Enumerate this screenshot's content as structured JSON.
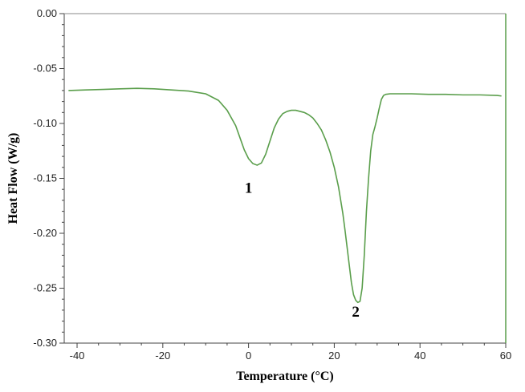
{
  "chart_data": {
    "type": "line",
    "title": "",
    "xlabel": "Temperature (°C)",
    "ylabel": "Heat Flow (W/g)",
    "xlim": [
      -43,
      60
    ],
    "ylim": [
      -0.3,
      0.0
    ],
    "xticks": [
      {
        "value": -40,
        "label": "-40"
      },
      {
        "value": -20,
        "label": "-20"
      },
      {
        "value": 0,
        "label": "0"
      },
      {
        "value": 20,
        "label": "20"
      },
      {
        "value": 40,
        "label": "40"
      },
      {
        "value": 60,
        "label": "60"
      }
    ],
    "yticks": [
      {
        "value": 0.0,
        "label": "0.00"
      },
      {
        "value": -0.05,
        "label": "-0.05"
      },
      {
        "value": -0.1,
        "label": "-0.10"
      },
      {
        "value": -0.15,
        "label": "-0.15"
      },
      {
        "value": -0.2,
        "label": "-0.20"
      },
      {
        "value": -0.25,
        "label": "-0.25"
      },
      {
        "value": -0.3,
        "label": "-0.30"
      }
    ],
    "grid": false,
    "legend": "none",
    "series": [
      {
        "color": "#5a9e4b",
        "x": [
          -42,
          -38,
          -34,
          -30,
          -26,
          -22,
          -18,
          -14,
          -10,
          -7,
          -5,
          -3,
          -2,
          -1,
          0,
          1,
          2,
          3,
          4,
          5,
          6,
          7,
          8,
          9,
          10,
          11,
          12,
          13,
          14,
          15,
          16,
          17,
          18,
          19,
          20,
          21,
          22,
          22.5,
          23,
          23.5,
          24,
          24.5,
          25,
          25.5,
          26,
          26.5,
          27,
          27.5,
          28,
          28.5,
          29,
          29.5,
          30,
          30.5,
          31,
          31.5,
          32,
          33,
          35,
          38,
          42,
          46,
          50,
          54,
          58,
          59
        ],
        "y": [
          -0.07,
          -0.0695,
          -0.069,
          -0.0685,
          -0.068,
          -0.0685,
          -0.0695,
          -0.0705,
          -0.073,
          -0.079,
          -0.088,
          -0.102,
          -0.113,
          -0.124,
          -0.132,
          -0.1365,
          -0.138,
          -0.136,
          -0.128,
          -0.116,
          -0.104,
          -0.096,
          -0.091,
          -0.089,
          -0.088,
          -0.088,
          -0.089,
          -0.09,
          -0.092,
          -0.095,
          -0.1,
          -0.106,
          -0.115,
          -0.126,
          -0.14,
          -0.158,
          -0.182,
          -0.197,
          -0.213,
          -0.229,
          -0.245,
          -0.256,
          -0.261,
          -0.263,
          -0.262,
          -0.25,
          -0.22,
          -0.18,
          -0.15,
          -0.125,
          -0.11,
          -0.103,
          -0.095,
          -0.086,
          -0.078,
          -0.0745,
          -0.0735,
          -0.073,
          -0.073,
          -0.073,
          -0.0735,
          -0.0735,
          -0.074,
          -0.074,
          -0.0745,
          -0.075
        ]
      }
    ],
    "annotations": [
      {
        "label": "1",
        "x": 0,
        "y": -0.163
      },
      {
        "label": "2",
        "x": 25,
        "y": -0.276
      }
    ]
  },
  "colors": {
    "curve": "#5a9e4b",
    "axis": "#444444",
    "frame_right": "#5a9e4b"
  }
}
